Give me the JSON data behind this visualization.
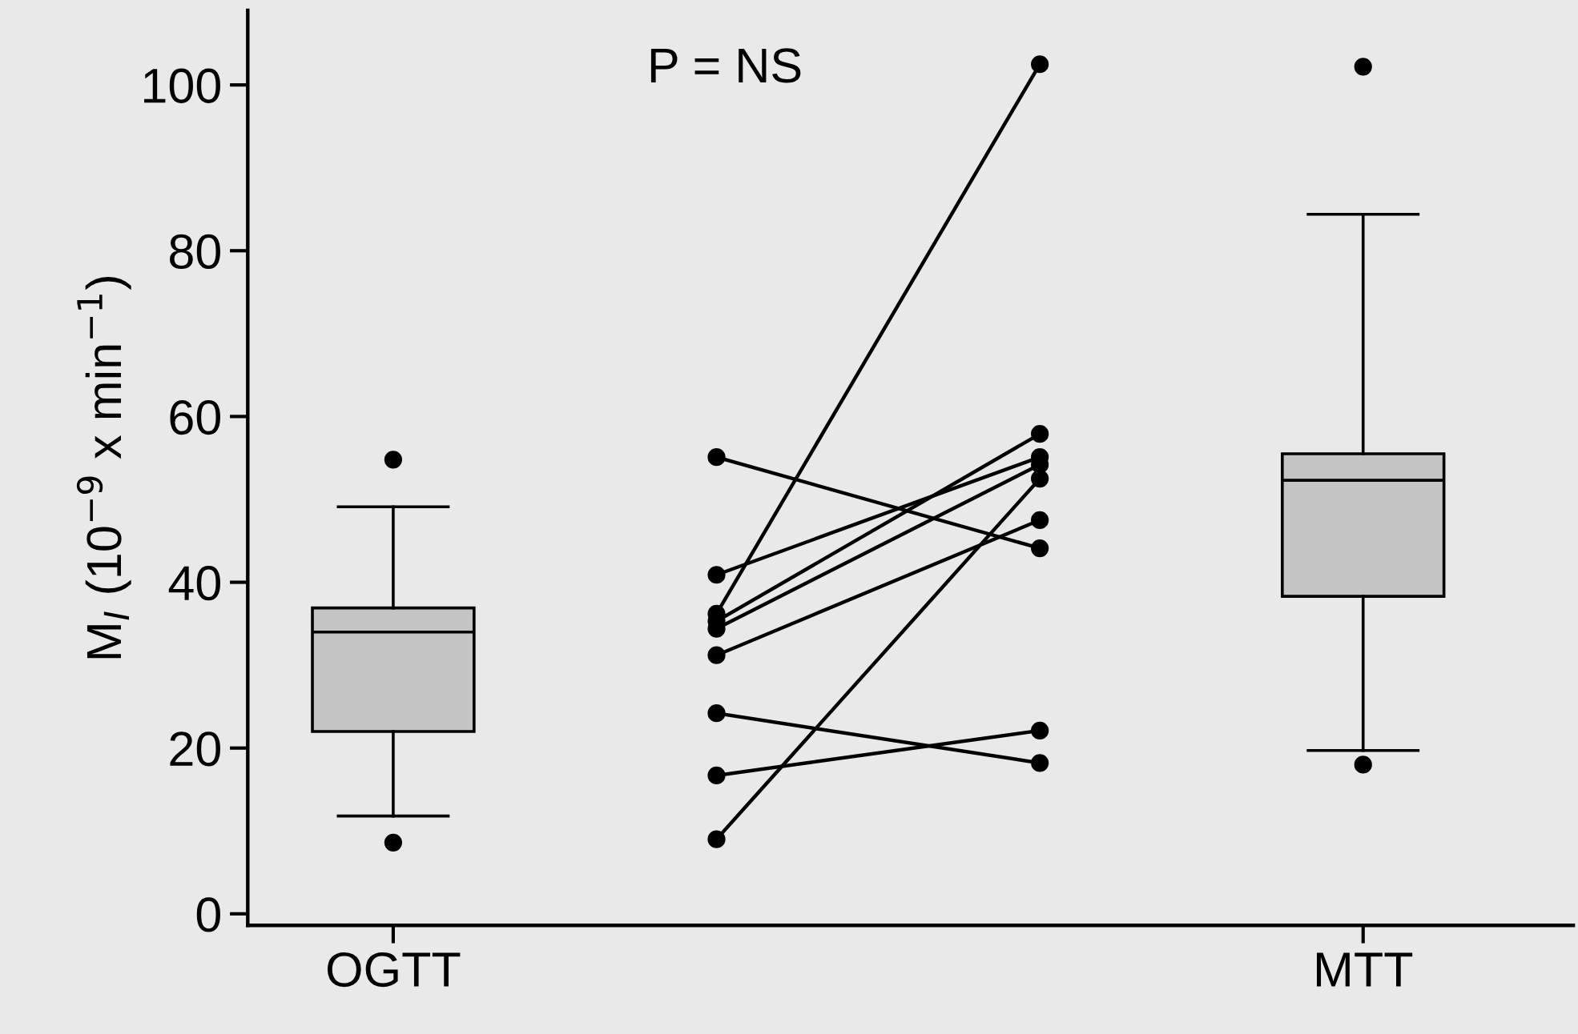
{
  "chart_data": {
    "type": "box",
    "ylabel": "M$_{I}$ (10$^{−9}$ x min$^{−1}$)",
    "annotations": [
      "P = NS"
    ],
    "categories": [
      "OGTT",
      null,
      null,
      "MTT"
    ],
    "ylim": [
      -1.4,
      109
    ],
    "yticks": [
      0,
      20,
      40,
      60,
      80,
      100
    ],
    "grid": false,
    "marker": "circle",
    "line_style": "solid",
    "series": [
      {
        "color": "#c4c4c4",
        "boxes": [
          {
            "low": 11.8,
            "q1": 22.0,
            "median": 34.0,
            "q3": 36.9,
            "high": 49.1,
            "outliers": [
              54.8,
              8.6
            ]
          },
          null,
          null,
          {
            "low": 19.7,
            "q1": 38.3,
            "median": 52.3,
            "q3": 55.5,
            "high": 84.4,
            "outliers": [
              102.2,
              18.0
            ]
          }
        ]
      },
      {
        "type": "line",
        "color": "#000000",
        "values": [
          null,
          55.1,
          44.1,
          null
        ]
      },
      {
        "type": "line",
        "color": "#000000",
        "values": [
          null,
          40.9,
          55.1,
          null
        ]
      },
      {
        "type": "line",
        "color": "#000000",
        "values": [
          null,
          36.2,
          102.5,
          null
        ]
      },
      {
        "type": "line",
        "color": "#000000",
        "values": [
          null,
          35.3,
          57.9,
          null
        ]
      },
      {
        "type": "line",
        "color": "#000000",
        "values": [
          null,
          34.4,
          54.2,
          null
        ]
      },
      {
        "type": "line",
        "color": "#000000",
        "values": [
          null,
          31.2,
          47.5,
          null
        ]
      },
      {
        "type": "line",
        "color": "#000000",
        "values": [
          null,
          24.2,
          18.2,
          null
        ]
      },
      {
        "type": "line",
        "color": "#000000",
        "values": [
          null,
          16.7,
          22.1,
          null
        ]
      },
      {
        "type": "line",
        "color": "#000000",
        "values": [
          null,
          9.0,
          52.5,
          null
        ]
      }
    ]
  }
}
